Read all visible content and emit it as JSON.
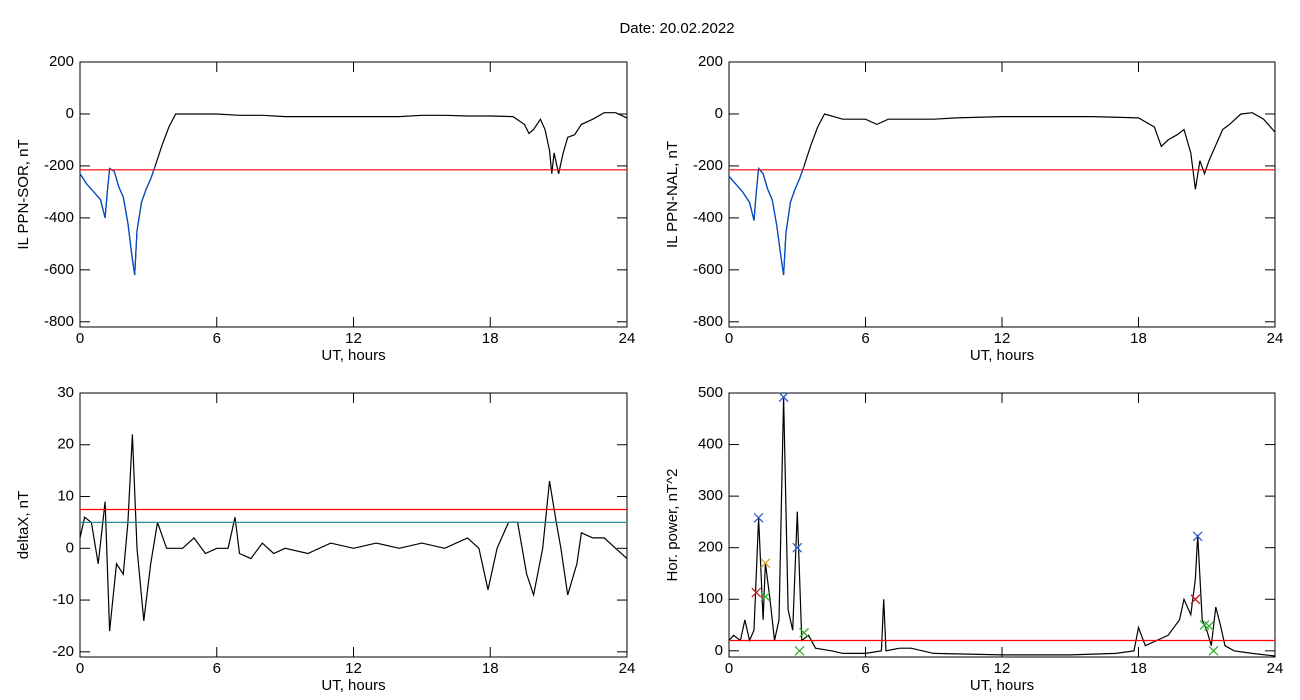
{
  "title": "Date:  20.02.2022",
  "chart_data": [
    {
      "type": "line",
      "xlabel": "UT, hours",
      "ylabel": "IL PPN-SOR, nT",
      "xlim": [
        0,
        24
      ],
      "xticks": [
        0,
        6,
        12,
        18,
        24
      ],
      "ylim": [
        -820,
        200
      ],
      "yticks": [
        -800,
        -600,
        -400,
        -200,
        0,
        200
      ],
      "hlines": [
        {
          "value": -215,
          "color": "#ff0000"
        }
      ],
      "series": [
        {
          "color": "#000000",
          "x": [
            0,
            0.3,
            0.6,
            0.9,
            1.1,
            1.2,
            1.3,
            1.5,
            1.7,
            1.9,
            2.1,
            2.3,
            2.4,
            2.5,
            2.7,
            2.9,
            3.1,
            3.3,
            3.6,
            3.9,
            4.2,
            5,
            6,
            7,
            8,
            9,
            10,
            11,
            12,
            13,
            14,
            15,
            16,
            17,
            18,
            19,
            19.5,
            19.7,
            19.9,
            20.2,
            20.4,
            20.6,
            20.7,
            20.8,
            21.0,
            21.2,
            21.4,
            21.7,
            22,
            22.5,
            23,
            23.5,
            24
          ],
          "values": [
            -230,
            -270,
            -300,
            -330,
            -400,
            -300,
            -210,
            -220,
            -280,
            -320,
            -420,
            -560,
            -620,
            -450,
            -340,
            -290,
            -250,
            -200,
            -120,
            -50,
            0,
            0,
            0,
            -5,
            -5,
            -10,
            -10,
            -10,
            -10,
            -10,
            -10,
            -5,
            -5,
            -8,
            -8,
            -10,
            -40,
            -75,
            -60,
            -20,
            -60,
            -140,
            -230,
            -150,
            -230,
            -150,
            -90,
            -80,
            -40,
            -20,
            5,
            5,
            -15
          ]
        },
        {
          "color": "#0050d0",
          "x": [
            0,
            0.3,
            0.6,
            0.9,
            1.1,
            1.2,
            1.3,
            1.5,
            1.7,
            1.9,
            2.1,
            2.3,
            2.4,
            2.5,
            2.7,
            2.9,
            3.1,
            3.3
          ],
          "values": [
            -230,
            -270,
            -300,
            -330,
            -400,
            -300,
            -210,
            -220,
            -280,
            -320,
            -420,
            -560,
            -620,
            -450,
            -340,
            -290,
            -250,
            -200
          ]
        }
      ]
    },
    {
      "type": "line",
      "xlabel": "UT, hours",
      "ylabel": "IL PPN-NAL, nT",
      "xlim": [
        0,
        24
      ],
      "xticks": [
        0,
        6,
        12,
        18,
        24
      ],
      "ylim": [
        -820,
        200
      ],
      "yticks": [
        -800,
        -600,
        -400,
        -200,
        0,
        200
      ],
      "hlines": [
        {
          "value": -215,
          "color": "#ff0000"
        }
      ],
      "series": [
        {
          "color": "#000000",
          "x": [
            0,
            0.3,
            0.6,
            0.9,
            1.1,
            1.2,
            1.3,
            1.5,
            1.7,
            1.9,
            2.1,
            2.3,
            2.4,
            2.5,
            2.7,
            2.9,
            3.1,
            3.3,
            3.6,
            3.9,
            4.2,
            5,
            6,
            6.5,
            7,
            8,
            9,
            10,
            12,
            14,
            16,
            18,
            18.7,
            19,
            19.3,
            19.7,
            20.0,
            20.3,
            20.5,
            20.7,
            20.9,
            21.1,
            21.4,
            21.7,
            22,
            22.5,
            23,
            23.5,
            24
          ],
          "values": [
            -240,
            -270,
            -300,
            -340,
            -410,
            -300,
            -210,
            -230,
            -290,
            -330,
            -430,
            -560,
            -620,
            -460,
            -340,
            -290,
            -250,
            -200,
            -120,
            -50,
            0,
            -20,
            -20,
            -40,
            -20,
            -20,
            -20,
            -15,
            -10,
            -10,
            -10,
            -15,
            -50,
            -125,
            -100,
            -80,
            -60,
            -150,
            -290,
            -180,
            -230,
            -180,
            -120,
            -60,
            -40,
            0,
            5,
            -20,
            -70
          ]
        },
        {
          "color": "#0050d0",
          "x": [
            0,
            0.3,
            0.6,
            0.9,
            1.1,
            1.2,
            1.3,
            1.5,
            1.7,
            1.9,
            2.1,
            2.3,
            2.4,
            2.5,
            2.7,
            2.9,
            3.1,
            3.3
          ],
          "values": [
            -240,
            -270,
            -300,
            -340,
            -410,
            -300,
            -210,
            -230,
            -290,
            -330,
            -430,
            -560,
            -620,
            -460,
            -340,
            -290,
            -250,
            -200
          ]
        }
      ]
    },
    {
      "type": "line",
      "xlabel": "UT, hours",
      "ylabel": "deltaX, nT",
      "xlim": [
        0,
        24
      ],
      "xticks": [
        0,
        6,
        12,
        18,
        24
      ],
      "ylim": [
        -21,
        30
      ],
      "yticks": [
        -20,
        -10,
        0,
        10,
        20,
        30
      ],
      "hlines": [
        {
          "value": 7.5,
          "color": "#ff0000"
        },
        {
          "value": 5,
          "color": "#2a8a9a"
        }
      ],
      "series": [
        {
          "color": "#000000",
          "x": [
            0,
            0.2,
            0.5,
            0.8,
            1.1,
            1.3,
            1.6,
            1.9,
            2.1,
            2.3,
            2.5,
            2.8,
            3.1,
            3.4,
            3.8,
            4.5,
            5,
            5.5,
            6,
            6.5,
            6.8,
            7,
            7.5,
            8,
            8.5,
            9,
            10,
            11,
            12,
            13,
            14,
            15,
            16,
            17,
            17.5,
            17.9,
            18.3,
            18.8,
            19.2,
            19.6,
            19.9,
            20.3,
            20.6,
            20.9,
            21.1,
            21.4,
            21.8,
            22,
            22.5,
            23,
            23.5,
            24
          ],
          "values": [
            2,
            6,
            5,
            -3,
            9,
            -16,
            -3,
            -5,
            5,
            22,
            0,
            -14,
            -3,
            5,
            0,
            0,
            2,
            -1,
            0,
            0,
            6,
            -1,
            -2,
            1,
            -1,
            0,
            -1,
            1,
            0,
            1,
            0,
            1,
            0,
            2,
            0,
            -8,
            0,
            5,
            5,
            -5,
            -9,
            0,
            13,
            5,
            0,
            -9,
            -3,
            3,
            2,
            2,
            0,
            -2
          ]
        }
      ]
    },
    {
      "type": "line",
      "xlabel": "UT, hours",
      "ylabel": "Hor. power, nT^2",
      "xlim": [
        0,
        24
      ],
      "xticks": [
        0,
        6,
        12,
        18,
        24
      ],
      "ylim": [
        -12,
        500
      ],
      "yticks": [
        0,
        100,
        200,
        300,
        400,
        500
      ],
      "hlines": [
        {
          "value": 20,
          "color": "#ff0000"
        }
      ],
      "series": [
        {
          "color": "#000000",
          "x": [
            0,
            0.2,
            0.5,
            0.7,
            0.9,
            1.1,
            1.3,
            1.5,
            1.6,
            1.8,
            2.0,
            2.2,
            2.4,
            2.6,
            2.8,
            3.0,
            3.2,
            3.5,
            3.8,
            4.5,
            5,
            6,
            6.7,
            6.8,
            6.9,
            7.5,
            8,
            9,
            12,
            15,
            17,
            17.8,
            18,
            18.3,
            18.8,
            19.3,
            19.8,
            20.0,
            20.3,
            20.5,
            20.6,
            20.8,
            21.0,
            21.2,
            21.4,
            21.6,
            21.8,
            22.2,
            23,
            24
          ],
          "values": [
            20,
            30,
            20,
            60,
            20,
            40,
            258,
            60,
            170,
            100,
            20,
            60,
            492,
            80,
            40,
            270,
            20,
            30,
            5,
            0,
            -5,
            -5,
            0,
            100,
            0,
            5,
            5,
            -5,
            -8,
            -8,
            -5,
            0,
            45,
            10,
            20,
            30,
            60,
            100,
            70,
            140,
            225,
            60,
            40,
            10,
            85,
            50,
            10,
            0,
            -5,
            -10
          ]
        }
      ],
      "markers": [
        {
          "color": "#3060d0",
          "x": [
            1.3,
            2.4,
            3.0,
            20.6
          ],
          "values": [
            258,
            492,
            200,
            222
          ]
        },
        {
          "color": "#c02020",
          "x": [
            1.2,
            20.5
          ],
          "values": [
            113,
            100
          ]
        },
        {
          "color": "#d0a020",
          "x": [
            1.6
          ],
          "values": [
            170
          ]
        },
        {
          "color": "#30b030",
          "x": [
            1.6,
            3.3,
            3.1,
            20.9,
            21.1,
            21.3
          ],
          "values": [
            105,
            35,
            0,
            50,
            48,
            0
          ]
        }
      ]
    }
  ]
}
